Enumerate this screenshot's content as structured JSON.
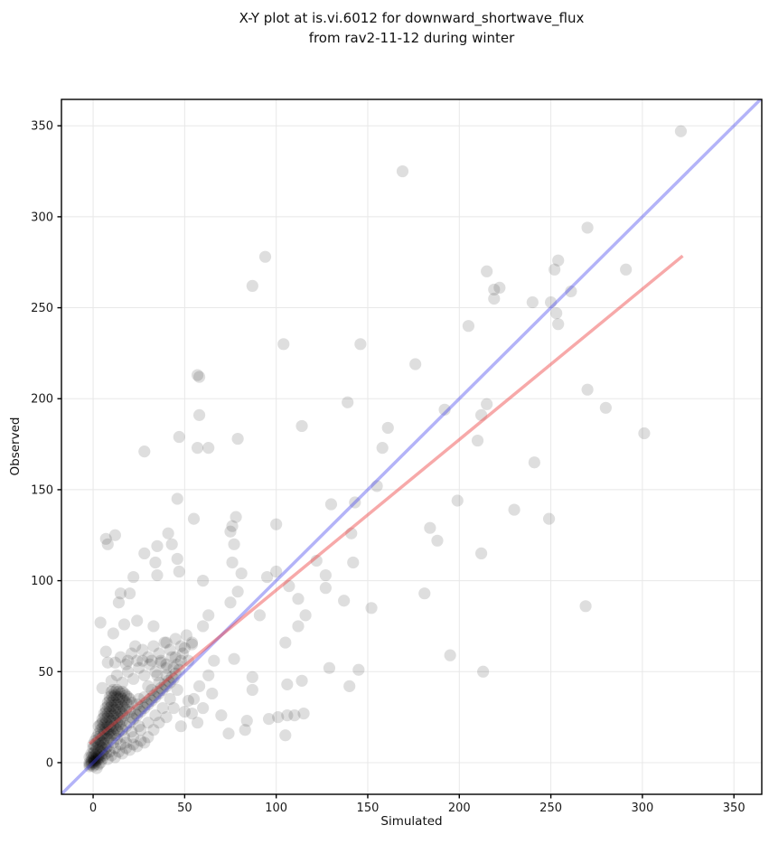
{
  "figure": {
    "title_line1": "X-Y plot at is.vi.6012 for downward_shortwave_flux",
    "title_line2": "from rav2-11-12 during winter",
    "xlabel": "Simulated",
    "ylabel": "Observed"
  },
  "chart_data": {
    "type": "scatter",
    "title": "X-Y plot at is.vi.6012 for downward_shortwave_flux from rav2-11-12 during winter",
    "xlabel": "Simulated",
    "ylabel": "Observed",
    "xlim": [
      -17.3,
      365.2
    ],
    "ylim": [
      -17.4,
      364.5
    ],
    "xticks": [
      0,
      50,
      100,
      150,
      200,
      250,
      300,
      350
    ],
    "yticks": [
      0,
      50,
      100,
      150,
      200,
      250,
      300,
      350
    ],
    "grid": true,
    "grid_color": "#e8e8e8",
    "spine_color": "#000000",
    "tick_label_color": "#1a1a1a",
    "marker": {
      "color": "#000000",
      "opacity": 0.13,
      "radius": 6.6
    },
    "lines": [
      {
        "name": "identity_1to1",
        "from": [
          -17.3,
          -17.3
        ],
        "to": [
          364.5,
          364.5
        ],
        "color": "#4040ee",
        "opacity": 0.4,
        "width": 3.5
      },
      {
        "name": "linear_fit",
        "from": [
          -2,
          10.4
        ],
        "to": [
          322,
          278.5
        ],
        "color": "#ee4040",
        "opacity": 0.45,
        "width": 3.5
      }
    ],
    "points": [
      [
        169,
        325
      ],
      [
        94,
        278
      ],
      [
        87,
        262
      ],
      [
        321,
        347
      ],
      [
        270,
        294
      ],
      [
        215,
        270
      ],
      [
        222,
        261
      ],
      [
        219,
        260
      ],
      [
        219,
        255
      ],
      [
        254,
        276
      ],
      [
        252,
        271
      ],
      [
        261,
        259
      ],
      [
        240,
        253
      ],
      [
        250,
        253
      ],
      [
        253,
        247
      ],
      [
        254,
        241
      ],
      [
        291,
        271
      ],
      [
        205,
        240
      ],
      [
        104,
        230
      ],
      [
        146,
        230
      ],
      [
        176,
        219
      ],
      [
        58,
        212
      ],
      [
        57,
        213
      ],
      [
        139,
        198
      ],
      [
        58,
        191
      ],
      [
        114,
        185
      ],
      [
        161,
        184
      ],
      [
        47,
        179
      ],
      [
        79,
        178
      ],
      [
        158,
        173
      ],
      [
        57,
        173
      ],
      [
        63,
        173
      ],
      [
        28,
        171
      ],
      [
        155,
        152
      ],
      [
        143,
        143
      ],
      [
        130,
        142
      ],
      [
        46,
        145
      ],
      [
        55,
        134
      ],
      [
        78,
        135
      ],
      [
        76,
        130
      ],
      [
        100,
        131
      ],
      [
        75,
        127
      ],
      [
        7,
        123
      ],
      [
        12,
        125
      ],
      [
        41,
        126
      ],
      [
        35,
        119
      ],
      [
        43,
        120
      ],
      [
        28,
        115
      ],
      [
        34,
        110
      ],
      [
        46,
        112
      ],
      [
        77,
        120
      ],
      [
        76,
        110
      ],
      [
        141,
        126
      ],
      [
        122,
        111
      ],
      [
        142,
        110
      ],
      [
        192,
        194
      ],
      [
        215,
        197
      ],
      [
        212,
        191
      ],
      [
        210,
        177
      ],
      [
        270,
        205
      ],
      [
        280,
        195
      ],
      [
        301,
        181
      ],
      [
        241,
        165
      ],
      [
        199,
        144
      ],
      [
        230,
        139
      ],
      [
        249,
        134
      ],
      [
        184,
        129
      ],
      [
        188,
        122
      ],
      [
        212,
        115
      ],
      [
        181,
        93
      ],
      [
        269,
        86
      ],
      [
        195,
        59
      ],
      [
        213,
        50
      ],
      [
        22,
        102
      ],
      [
        35,
        103
      ],
      [
        47,
        105
      ],
      [
        15,
        93
      ],
      [
        20,
        93
      ],
      [
        14,
        88
      ],
      [
        4,
        77
      ],
      [
        11,
        71
      ],
      [
        17,
        76
      ],
      [
        24,
        78
      ],
      [
        33,
        75
      ],
      [
        60,
        75
      ],
      [
        63,
        81
      ],
      [
        75,
        88
      ],
      [
        79,
        94
      ],
      [
        40,
        66
      ],
      [
        23,
        64
      ],
      [
        7,
        61
      ],
      [
        8,
        55
      ],
      [
        19,
        56
      ],
      [
        27,
        56
      ],
      [
        32,
        56
      ],
      [
        37,
        55
      ],
      [
        50,
        63
      ],
      [
        54,
        65
      ],
      [
        66,
        56
      ],
      [
        63,
        48
      ],
      [
        58,
        42
      ],
      [
        52,
        34
      ],
      [
        54,
        27
      ],
      [
        5,
        41
      ],
      [
        70,
        26
      ],
      [
        74,
        16
      ],
      [
        81,
        104
      ],
      [
        127,
        103
      ],
      [
        127,
        96
      ],
      [
        137,
        89
      ],
      [
        152,
        85
      ],
      [
        91,
        81
      ],
      [
        116,
        81
      ],
      [
        112,
        75
      ],
      [
        105,
        66
      ],
      [
        77,
        57
      ],
      [
        87,
        47
      ],
      [
        87,
        40
      ],
      [
        106,
        43
      ],
      [
        114,
        45
      ],
      [
        129,
        52
      ],
      [
        145,
        51
      ],
      [
        140,
        42
      ],
      [
        84,
        23
      ],
      [
        83,
        18
      ],
      [
        96,
        24
      ],
      [
        101,
        25
      ],
      [
        106,
        26
      ],
      [
        110,
        26
      ],
      [
        115,
        27
      ],
      [
        105,
        15
      ],
      [
        95,
        102
      ],
      [
        100,
        105
      ],
      [
        107,
        97
      ],
      [
        60,
        100
      ],
      [
        112,
        90
      ],
      [
        8,
        120
      ],
      [
        -2,
        -2
      ],
      [
        -1,
        -1
      ],
      [
        0,
        0
      ],
      [
        0.5,
        1
      ],
      [
        1,
        0
      ],
      [
        1,
        2
      ],
      [
        -1,
        1
      ],
      [
        2,
        1
      ],
      [
        2,
        3
      ],
      [
        0,
        -2
      ],
      [
        1,
        -1
      ],
      [
        -2,
        0
      ],
      [
        3,
        2
      ],
      [
        3,
        4
      ],
      [
        2,
        5
      ],
      [
        1,
        4
      ],
      [
        0,
        3
      ],
      [
        -1,
        3
      ],
      [
        4,
        3
      ],
      [
        4,
        6
      ],
      [
        3,
        7
      ],
      [
        2,
        8
      ],
      [
        1,
        6
      ],
      [
        0,
        5
      ],
      [
        5,
        5
      ],
      [
        5,
        8
      ],
      [
        4,
        9
      ],
      [
        3,
        10
      ],
      [
        2,
        -3
      ],
      [
        3,
        -1
      ],
      [
        4,
        0
      ],
      [
        5,
        2
      ],
      [
        6,
        4
      ],
      [
        6,
        7
      ],
      [
        0,
        8
      ],
      [
        1,
        9
      ],
      [
        -1,
        5
      ],
      [
        -2,
        3
      ],
      [
        6,
        10
      ],
      [
        5,
        11
      ],
      [
        4,
        12
      ],
      [
        3,
        13
      ],
      [
        2,
        11
      ],
      [
        1,
        12
      ],
      [
        0,
        10
      ],
      [
        6,
        13
      ],
      [
        7,
        11
      ],
      [
        7,
        8
      ],
      [
        7,
        5
      ],
      [
        8,
        9
      ],
      [
        8,
        13
      ],
      [
        2,
        2
      ],
      [
        1,
        1
      ],
      [
        0,
        2
      ],
      [
        -1,
        0
      ],
      [
        -2,
        -1
      ],
      [
        3,
        3
      ],
      [
        2,
        14
      ],
      [
        3,
        16
      ],
      [
        4,
        15
      ],
      [
        5,
        14
      ],
      [
        6,
        16
      ],
      [
        7,
        15
      ],
      [
        8,
        16
      ],
      [
        9,
        14
      ],
      [
        10,
        15
      ],
      [
        4,
        18
      ],
      [
        5,
        19
      ],
      [
        6,
        18
      ],
      [
        7,
        19
      ],
      [
        8,
        18
      ],
      [
        9,
        17
      ],
      [
        10,
        18
      ],
      [
        11,
        16
      ],
      [
        12,
        15
      ],
      [
        3,
        20
      ],
      [
        4,
        21
      ],
      [
        5,
        22
      ],
      [
        6,
        21
      ],
      [
        7,
        22
      ],
      [
        8,
        21
      ],
      [
        9,
        20
      ],
      [
        10,
        21
      ],
      [
        11,
        20
      ],
      [
        12,
        19
      ],
      [
        13,
        18
      ],
      [
        14,
        17
      ],
      [
        5,
        24
      ],
      [
        6,
        25
      ],
      [
        7,
        24
      ],
      [
        8,
        25
      ],
      [
        9,
        24
      ],
      [
        10,
        23
      ],
      [
        11,
        24
      ],
      [
        12,
        23
      ],
      [
        13,
        22
      ],
      [
        14,
        21
      ],
      [
        15,
        20
      ],
      [
        6,
        27
      ],
      [
        7,
        28
      ],
      [
        8,
        27
      ],
      [
        9,
        28
      ],
      [
        10,
        27
      ],
      [
        11,
        26
      ],
      [
        12,
        27
      ],
      [
        13,
        26
      ],
      [
        14,
        25
      ],
      [
        15,
        24
      ],
      [
        16,
        23
      ],
      [
        7,
        30
      ],
      [
        8,
        31
      ],
      [
        9,
        30
      ],
      [
        10,
        31
      ],
      [
        11,
        30
      ],
      [
        12,
        29
      ],
      [
        13,
        30
      ],
      [
        14,
        29
      ],
      [
        15,
        28
      ],
      [
        16,
        27
      ],
      [
        17,
        26
      ],
      [
        8,
        33
      ],
      [
        9,
        34
      ],
      [
        10,
        33
      ],
      [
        11,
        34
      ],
      [
        12,
        33
      ],
      [
        13,
        32
      ],
      [
        14,
        33
      ],
      [
        15,
        32
      ],
      [
        16,
        31
      ],
      [
        17,
        30
      ],
      [
        18,
        29
      ],
      [
        9,
        36
      ],
      [
        10,
        37
      ],
      [
        11,
        36
      ],
      [
        12,
        37
      ],
      [
        13,
        36
      ],
      [
        14,
        35
      ],
      [
        15,
        36
      ],
      [
        16,
        35
      ],
      [
        17,
        34
      ],
      [
        18,
        33
      ],
      [
        19,
        32
      ],
      [
        10,
        39
      ],
      [
        11,
        40
      ],
      [
        12,
        39
      ],
      [
        13,
        40
      ],
      [
        14,
        39
      ],
      [
        15,
        38
      ],
      [
        16,
        39
      ],
      [
        17,
        38
      ],
      [
        18,
        37
      ],
      [
        19,
        36
      ],
      [
        20,
        35
      ],
      [
        21,
        33
      ],
      [
        16,
        18
      ],
      [
        18,
        20
      ],
      [
        20,
        22
      ],
      [
        22,
        24
      ],
      [
        24,
        26
      ],
      [
        26,
        28
      ],
      [
        28,
        30
      ],
      [
        30,
        32
      ],
      [
        32,
        34
      ],
      [
        34,
        36
      ],
      [
        36,
        38
      ],
      [
        38,
        40
      ],
      [
        40,
        42
      ],
      [
        42,
        44
      ],
      [
        44,
        46
      ],
      [
        21,
        25
      ],
      [
        23,
        27
      ],
      [
        25,
        29
      ],
      [
        27,
        31
      ],
      [
        29,
        33
      ],
      [
        31,
        35
      ],
      [
        33,
        37
      ],
      [
        35,
        39
      ],
      [
        37,
        41
      ],
      [
        39,
        43
      ],
      [
        41,
        45
      ],
      [
        43,
        47
      ],
      [
        45,
        49
      ],
      [
        47,
        51
      ],
      [
        20,
        28
      ],
      [
        24,
        32
      ],
      [
        28,
        36
      ],
      [
        32,
        40
      ],
      [
        36,
        44
      ],
      [
        40,
        48
      ],
      [
        44,
        52
      ],
      [
        48,
        56
      ],
      [
        46,
        40
      ],
      [
        42,
        35
      ],
      [
        38,
        30
      ],
      [
        34,
        26
      ],
      [
        30,
        22
      ],
      [
        26,
        18
      ],
      [
        22,
        14
      ],
      [
        18,
        11
      ],
      [
        25,
        35
      ],
      [
        30,
        42
      ],
      [
        35,
        48
      ],
      [
        40,
        54
      ],
      [
        45,
        58
      ],
      [
        10,
        45
      ],
      [
        13,
        48
      ],
      [
        16,
        44
      ],
      [
        19,
        50
      ],
      [
        22,
        46
      ],
      [
        25,
        52
      ],
      [
        28,
        48
      ],
      [
        31,
        54
      ],
      [
        34,
        50
      ],
      [
        37,
        56
      ],
      [
        40,
        52
      ],
      [
        43,
        58
      ],
      [
        46,
        54
      ],
      [
        49,
        60
      ],
      [
        52,
        56
      ],
      [
        12,
        55
      ],
      [
        15,
        58
      ],
      [
        18,
        54
      ],
      [
        21,
        60
      ],
      [
        24,
        56
      ],
      [
        27,
        62
      ],
      [
        30,
        58
      ],
      [
        33,
        64
      ],
      [
        36,
        60
      ],
      [
        39,
        66
      ],
      [
        42,
        62
      ],
      [
        45,
        68
      ],
      [
        48,
        64
      ],
      [
        51,
        70
      ],
      [
        54,
        66
      ],
      [
        8,
        2
      ],
      [
        10,
        4
      ],
      [
        12,
        3
      ],
      [
        14,
        6
      ],
      [
        16,
        5
      ],
      [
        18,
        8
      ],
      [
        20,
        7
      ],
      [
        22,
        10
      ],
      [
        24,
        9
      ],
      [
        26,
        12
      ],
      [
        28,
        11
      ],
      [
        30,
        14
      ],
      [
        12,
        8
      ],
      [
        15,
        10
      ],
      [
        9,
        6
      ],
      [
        11,
        11
      ],
      [
        13,
        13
      ],
      [
        17,
        14
      ],
      [
        21,
        17
      ],
      [
        25,
        20
      ],
      [
        33,
        18
      ],
      [
        36,
        22
      ],
      [
        40,
        25
      ],
      [
        44,
        30
      ],
      [
        48,
        20
      ],
      [
        55,
        35
      ],
      [
        60,
        30
      ],
      [
        65,
        38
      ],
      [
        50,
        28
      ],
      [
        57,
        22
      ]
    ]
  }
}
